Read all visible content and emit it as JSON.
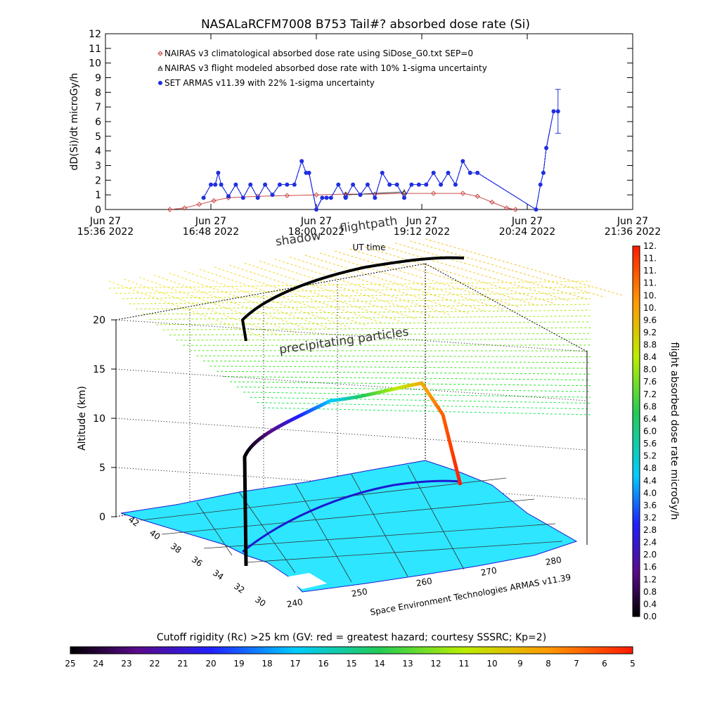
{
  "title": "NASALaRCFM7008  B753 Tail#? absorbed dose rate (Si)",
  "colors": {
    "climatological": "#cc4b4b",
    "modeled": "#333333",
    "armas": "#1f2fe0",
    "map_fill": "#2ee6ff"
  },
  "chart_data": [
    {
      "type": "line",
      "title": "NASALaRCFM7008  B753 Tail#? absorbed dose rate (Si)",
      "xlabel": "UT time",
      "ylabel": "dD(Si)/dt microGy/h",
      "ylim": [
        0,
        12
      ],
      "yticks": [
        "0",
        "1",
        "2",
        "3",
        "4",
        "5",
        "6",
        "7",
        "8",
        "9",
        "10",
        "11",
        "12"
      ],
      "xlim_minutes": [
        936,
        1296
      ],
      "xticks": [
        {
          "date": "Jun 27",
          "time": "15:36 2022"
        },
        {
          "date": "Jun 27",
          "time": "16:48 2022"
        },
        {
          "date": "Jun 27",
          "time": "18:00 2022"
        },
        {
          "date": "Jun 27",
          "time": "19:12 2022"
        },
        {
          "date": "Jun 27",
          "time": "20:24 2022"
        },
        {
          "date": "Jun 27",
          "time": "21:36 2022"
        }
      ],
      "legend_position": "top-left",
      "series": [
        {
          "name": "NAIRAS v3 climatological absorbed dose rate using SiDose_G0.txt SEP=0",
          "marker": "diamond",
          "x": [
            980,
            990,
            1000,
            1010,
            1020,
            1040,
            1060,
            1080,
            1100,
            1120,
            1140,
            1160,
            1180,
            1190,
            1200,
            1210,
            1216
          ],
          "y": [
            0.0,
            0.1,
            0.35,
            0.6,
            0.8,
            0.9,
            0.95,
            1.0,
            1.05,
            1.05,
            1.1,
            1.1,
            1.1,
            0.9,
            0.5,
            0.1,
            0.0
          ]
        },
        {
          "name": "NAIRAS v3 flight modeled absorbed dose rate with 10% 1-sigma uncertainty",
          "marker": "triangle",
          "x": [
            1100,
            1140
          ],
          "y": [
            1.0,
            1.2
          ]
        },
        {
          "name": "SET ARMAS v11.39 with 22% 1-sigma uncertainty",
          "marker": "circle",
          "x": [
            1003,
            1008,
            1011,
            1013,
            1015,
            1020,
            1025,
            1030,
            1035,
            1040,
            1045,
            1050,
            1055,
            1060,
            1065,
            1070,
            1073,
            1075,
            1080,
            1084,
            1087,
            1090,
            1095,
            1100,
            1105,
            1110,
            1115,
            1120,
            1125,
            1130,
            1135,
            1140,
            1145,
            1150,
            1155,
            1160,
            1165,
            1170,
            1175,
            1180,
            1185,
            1190,
            1230,
            1233,
            1235,
            1237,
            1242,
            1245
          ],
          "y": [
            0.8,
            1.7,
            1.7,
            2.5,
            1.7,
            0.9,
            1.7,
            0.8,
            1.7,
            0.8,
            1.7,
            1.0,
            1.7,
            1.7,
            1.7,
            3.3,
            2.5,
            2.5,
            0.0,
            0.8,
            0.8,
            0.8,
            1.7,
            0.8,
            1.7,
            1.0,
            1.7,
            0.8,
            2.5,
            1.7,
            1.7,
            0.8,
            1.7,
            1.7,
            1.7,
            2.5,
            1.7,
            2.5,
            1.7,
            3.3,
            2.5,
            2.5,
            0.0,
            1.7,
            2.5,
            4.2,
            6.7,
            6.7
          ]
        }
      ]
    },
    {
      "type": "3d-surface",
      "zlabel": "Altitude (km)",
      "zticks": [
        "0",
        "5",
        "10",
        "15",
        "20"
      ],
      "lat_ticks": [
        "42",
        "40",
        "38",
        "36",
        "34",
        "32",
        "30"
      ],
      "lon_ticks": [
        "240",
        "250",
        "260",
        "270",
        "280"
      ],
      "annotations": [
        "shadow",
        "flightpath",
        "UT time",
        "precipitating particles"
      ],
      "credit": "Space Environment Technologies ARMAS v11.39",
      "colorbar_label": "flight absorbed dose rate microGy/h",
      "colorbar_ticks": [
        "0.0",
        "0.4",
        "0.8",
        "1.2",
        "1.6",
        "2.0",
        "2.4",
        "2.8",
        "3.2",
        "3.6",
        "4.0",
        "4.4",
        "4.8",
        "5.2",
        "5.6",
        "6.0",
        "6.4",
        "6.8",
        "7.2",
        "7.6",
        "8.0",
        "8.4",
        "8.8",
        "9.2",
        "9.6",
        "10.",
        "10.",
        "11.",
        "11.",
        "11.",
        "12."
      ]
    },
    {
      "type": "heatmap",
      "title": "Cutoff rigidity (Rc) >25 km (GV: red = greatest hazard; courtesy SSSRC; Kp=2)",
      "ticks": [
        "25",
        "24",
        "23",
        "22",
        "21",
        "20",
        "19",
        "18",
        "17",
        "16",
        "15",
        "14",
        "13",
        "12",
        "11",
        "10",
        "9",
        "8",
        "7",
        "6",
        "5"
      ]
    }
  ]
}
